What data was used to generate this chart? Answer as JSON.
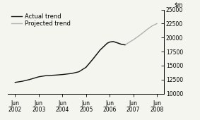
{
  "ylim": [
    10000,
    25000
  ],
  "yticks": [
    10000,
    12500,
    15000,
    17500,
    20000,
    22500,
    25000
  ],
  "xtick_labels": [
    "Jun\n2002",
    "Jun\n2003",
    "Jun\n2004",
    "Jun\n2005",
    "Jun\n2006",
    "Jun\n2007",
    "Jun\n2008"
  ],
  "xtick_positions": [
    0,
    1,
    2,
    3,
    4,
    5,
    6
  ],
  "actual_x": [
    0,
    0.3,
    0.6,
    1.0,
    1.3,
    1.7,
    2.0,
    2.4,
    2.7,
    3.0,
    3.3,
    3.6,
    3.9,
    4.0,
    4.15,
    4.3,
    4.5,
    4.65
  ],
  "actual_y": [
    12000,
    12200,
    12500,
    13000,
    13200,
    13300,
    13400,
    13600,
    13900,
    14700,
    16200,
    17800,
    19000,
    19200,
    19300,
    19100,
    18800,
    18700
  ],
  "projected_x": [
    3.0,
    3.3,
    3.6,
    3.9,
    4.0,
    4.15,
    4.3,
    4.5,
    4.65,
    5.0,
    5.3,
    5.6,
    5.8,
    6.0
  ],
  "projected_y": [
    14700,
    16200,
    17800,
    19000,
    19200,
    19300,
    19100,
    18800,
    18700,
    19600,
    20500,
    21500,
    22100,
    22500
  ],
  "actual_color": "#111111",
  "projected_color": "#b0b0b0",
  "bg_color": "#f5f5f0",
  "legend_actual": "Actual trend",
  "legend_projected": "Projected trend",
  "tick_fontsize": 5.5,
  "legend_fontsize": 6.0,
  "linewidth": 1.0
}
